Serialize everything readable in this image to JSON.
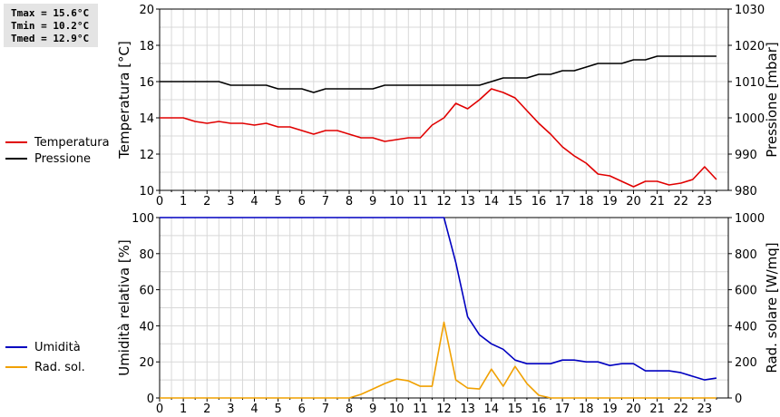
{
  "stats": {
    "tmax": "Tmax = 15.6°C",
    "tmin": "Tmin = 10.2°C",
    "tmed": "Tmed = 12.9°C"
  },
  "chart_data": [
    {
      "type": "line",
      "ylabel": "Temperatura [°C]",
      "y2label": "Pressione [mbar]",
      "ylim": [
        10,
        20
      ],
      "y2lim": [
        980,
        1030
      ],
      "yticks": [
        10,
        12,
        14,
        16,
        18,
        20
      ],
      "y2ticks": [
        980,
        990,
        1000,
        1010,
        1020,
        1030
      ],
      "xlim": [
        0,
        24
      ],
      "xticks": [
        0,
        1,
        2,
        3,
        4,
        5,
        6,
        7,
        8,
        9,
        10,
        11,
        12,
        13,
        14,
        15,
        16,
        17,
        18,
        19,
        20,
        21,
        22,
        23
      ],
      "grid": true,
      "series": [
        {
          "name": "Temperatura",
          "axis": "left",
          "color": "#e00000",
          "x": [
            0,
            0.5,
            1,
            1.5,
            2,
            2.5,
            3,
            3.5,
            4,
            4.5,
            5,
            5.5,
            6,
            6.5,
            7,
            7.5,
            8,
            8.5,
            9,
            9.5,
            10,
            10.5,
            11,
            11.5,
            12,
            12.5,
            13,
            13.5,
            14,
            14.5,
            15,
            15.5,
            16,
            16.5,
            17,
            17.5,
            18,
            18.5,
            19,
            19.5,
            20,
            20.5,
            21,
            21.5,
            22,
            22.5,
            23,
            23.5
          ],
          "values": [
            14.0,
            14.0,
            14.0,
            13.8,
            13.7,
            13.8,
            13.7,
            13.7,
            13.6,
            13.7,
            13.5,
            13.5,
            13.3,
            13.1,
            13.3,
            13.3,
            13.1,
            12.9,
            12.9,
            12.7,
            12.8,
            12.9,
            12.9,
            13.6,
            14.0,
            14.8,
            14.5,
            15.0,
            15.6,
            15.4,
            15.1,
            14.4,
            13.7,
            13.1,
            12.4,
            11.9,
            11.5,
            10.9,
            10.8,
            10.5,
            10.2,
            10.5,
            10.5,
            10.3,
            10.4,
            10.6,
            11.3,
            10.6
          ]
        },
        {
          "name": "Pressione",
          "axis": "right",
          "color": "#000000",
          "x": [
            0,
            0.5,
            1,
            1.5,
            2,
            2.5,
            3,
            3.5,
            4,
            4.5,
            5,
            5.5,
            6,
            6.5,
            7,
            7.5,
            8,
            8.5,
            9,
            9.5,
            10,
            10.5,
            11,
            11.5,
            12,
            12.5,
            13,
            13.5,
            14,
            14.5,
            15,
            15.5,
            16,
            16.5,
            17,
            17.5,
            18,
            18.5,
            19,
            19.5,
            20,
            20.5,
            21,
            21.5,
            22,
            22.5,
            23,
            23.5
          ],
          "values": [
            1010,
            1010,
            1010,
            1010,
            1010,
            1010,
            1009,
            1009,
            1009,
            1009,
            1008,
            1008,
            1008,
            1007,
            1008,
            1008,
            1008,
            1008,
            1008,
            1009,
            1009,
            1009,
            1009,
            1009,
            1009,
            1009,
            1009,
            1009,
            1010,
            1011,
            1011,
            1011,
            1012,
            1012,
            1013,
            1013,
            1014,
            1015,
            1015,
            1015,
            1016,
            1016,
            1017,
            1017,
            1017,
            1017,
            1017,
            1017
          ]
        }
      ]
    },
    {
      "type": "line",
      "ylabel": "Umidità relativa [%]",
      "y2label": "Rad. solare [W/mq]",
      "ylim": [
        0,
        100
      ],
      "y2lim": [
        0,
        1000
      ],
      "yticks": [
        0,
        20,
        40,
        60,
        80,
        100
      ],
      "y2ticks": [
        0,
        200,
        400,
        600,
        800,
        1000
      ],
      "xlim": [
        0,
        24
      ],
      "xticks": [
        0,
        1,
        2,
        3,
        4,
        5,
        6,
        7,
        8,
        9,
        10,
        11,
        12,
        13,
        14,
        15,
        16,
        17,
        18,
        19,
        20,
        21,
        22,
        23
      ],
      "grid": true,
      "series": [
        {
          "name": "Umidità",
          "axis": "left",
          "color": "#0000c0",
          "x": [
            0,
            0.5,
            1,
            1.5,
            2,
            2.5,
            3,
            3.5,
            4,
            4.5,
            5,
            5.5,
            6,
            6.5,
            7,
            7.5,
            8,
            8.5,
            9,
            9.5,
            10,
            10.5,
            11,
            11.5,
            12,
            12.5,
            13,
            13.5,
            14,
            14.5,
            15,
            15.5,
            16,
            16.5,
            17,
            17.5,
            18,
            18.5,
            19,
            19.5,
            20,
            20.5,
            21,
            21.5,
            22,
            22.5,
            23,
            23.5
          ],
          "values": [
            100,
            100,
            100,
            100,
            100,
            100,
            100,
            100,
            100,
            100,
            100,
            100,
            100,
            100,
            100,
            100,
            100,
            100,
            100,
            100,
            100,
            100,
            100,
            100,
            100,
            75,
            45,
            35,
            30,
            27,
            21,
            19,
            19,
            19,
            21,
            21,
            20,
            20,
            18,
            19,
            19,
            15,
            15,
            15,
            14,
            12,
            10,
            11
          ]
        },
        {
          "name": "Rad. sol.",
          "axis": "right",
          "color": "#f0a000",
          "x": [
            0,
            0.5,
            1,
            1.5,
            2,
            2.5,
            3,
            3.5,
            4,
            4.5,
            5,
            5.5,
            6,
            6.5,
            7,
            7.5,
            8,
            8.5,
            9,
            9.5,
            10,
            10.5,
            11,
            11.5,
            12,
            12.5,
            13,
            13.5,
            14,
            14.5,
            15,
            15.5,
            16,
            16.5,
            17,
            17.5,
            18,
            18.5,
            19,
            19.5,
            20,
            20.5,
            21,
            21.5,
            22,
            22.5,
            23,
            23.5
          ],
          "values": [
            0,
            0,
            0,
            0,
            0,
            0,
            0,
            0,
            0,
            0,
            0,
            0,
            0,
            0,
            0,
            0,
            0,
            20,
            50,
            80,
            105,
            95,
            65,
            65,
            420,
            100,
            55,
            50,
            160,
            65,
            175,
            80,
            15,
            0,
            0,
            0,
            0,
            0,
            0,
            0,
            0,
            0,
            0,
            0,
            0,
            0,
            0,
            0
          ]
        }
      ]
    }
  ]
}
